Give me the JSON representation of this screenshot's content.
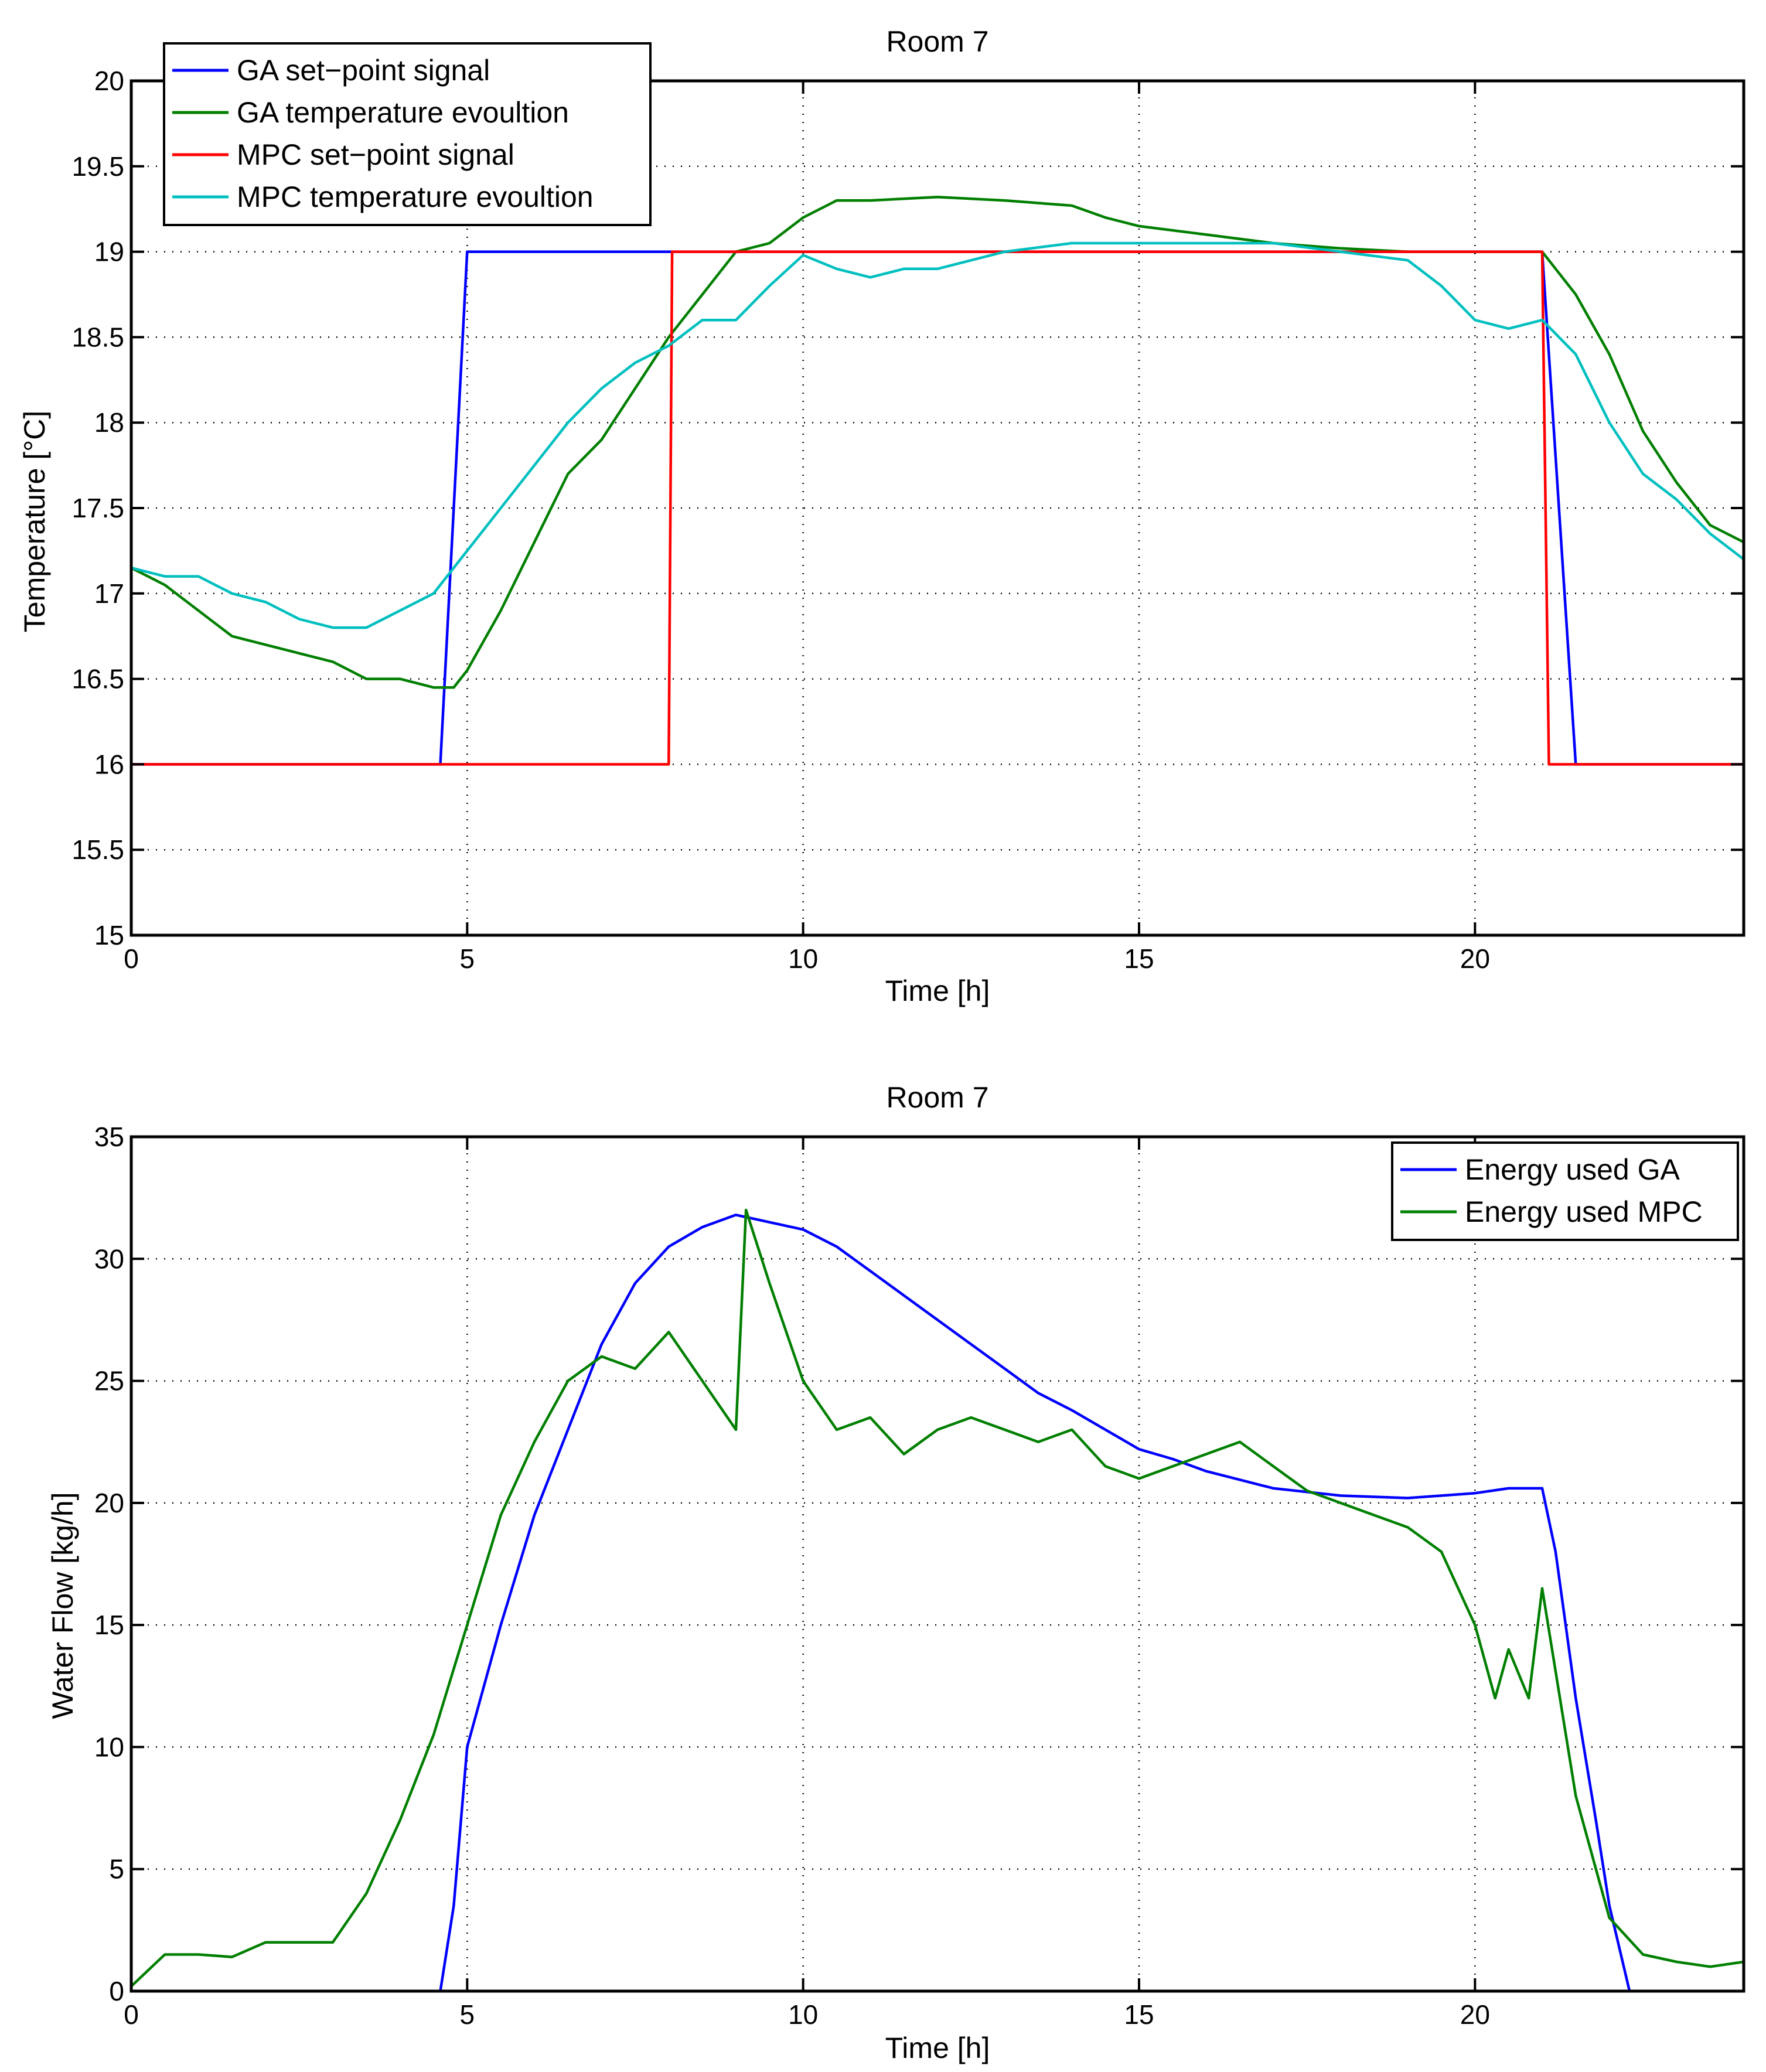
{
  "chart_data": [
    {
      "type": "line",
      "title": "Room 7",
      "xlabel": "Time [h]",
      "ylabel": "Temperature [°C]",
      "xlim": [
        0,
        24
      ],
      "ylim": [
        15,
        20
      ],
      "xticks": [
        0,
        5,
        10,
        15,
        20
      ],
      "yticks": [
        15,
        15.5,
        16,
        16.5,
        17,
        17.5,
        18,
        18.5,
        19,
        19.5,
        20
      ],
      "xtick_labels": [
        "0",
        "5",
        "10",
        "15",
        "20"
      ],
      "ytick_labels": [
        "15",
        "15.5",
        "16",
        "16.5",
        "17",
        "17.5",
        "18",
        "18.5",
        "19",
        "19.5",
        "20"
      ],
      "grid": true,
      "legend_position": "top-left",
      "series": [
        {
          "name": "GA set−point signal",
          "color": "#0000ff",
          "x": [
            0,
            4.6,
            5.0,
            21.0,
            21.5,
            24
          ],
          "y": [
            16,
            16,
            19,
            19,
            16,
            16
          ]
        },
        {
          "name": "GA temperature evoultion",
          "color": "#007f00",
          "x": [
            0,
            0.5,
            1.0,
            1.5,
            2.0,
            2.5,
            3.0,
            3.5,
            4.0,
            4.5,
            4.8,
            5.0,
            5.5,
            6.0,
            6.5,
            7.0,
            7.5,
            8.0,
            8.5,
            9.0,
            9.5,
            10.0,
            10.5,
            11.0,
            12.0,
            13.0,
            14.0,
            14.5,
            15.0,
            16.0,
            17.0,
            18.0,
            19.0,
            20.0,
            21.0,
            21.5,
            22.0,
            22.5,
            23.0,
            23.5,
            24.0
          ],
          "y": [
            17.15,
            17.05,
            16.9,
            16.75,
            16.7,
            16.65,
            16.6,
            16.5,
            16.5,
            16.45,
            16.45,
            16.55,
            16.9,
            17.3,
            17.7,
            17.9,
            18.2,
            18.5,
            18.75,
            19.0,
            19.05,
            19.2,
            19.3,
            19.3,
            19.32,
            19.3,
            19.27,
            19.2,
            19.15,
            19.1,
            19.05,
            19.02,
            19.0,
            19.0,
            19.0,
            18.75,
            18.4,
            17.95,
            17.65,
            17.4,
            17.3
          ]
        },
        {
          "name": "MPC set−point signal",
          "color": "#ff0000",
          "x": [
            0,
            8.0,
            8.05,
            21.0,
            21.1,
            24
          ],
          "y": [
            16,
            16,
            19,
            19,
            16,
            16
          ]
        },
        {
          "name": "MPC temperature evoultion",
          "color": "#00bfbf",
          "x": [
            0,
            0.5,
            1.0,
            1.5,
            2.0,
            2.5,
            3.0,
            3.5,
            4.0,
            4.5,
            5.0,
            5.5,
            6.0,
            6.5,
            7.0,
            7.5,
            8.0,
            8.5,
            9.0,
            9.5,
            10.0,
            10.5,
            11.0,
            11.5,
            12.0,
            13.0,
            14.0,
            15.0,
            16.0,
            17.0,
            18.0,
            19.0,
            19.5,
            20.0,
            20.5,
            21.0,
            21.5,
            22.0,
            22.5,
            23.0,
            23.5,
            24.0
          ],
          "y": [
            17.15,
            17.1,
            17.1,
            17.0,
            16.95,
            16.85,
            16.8,
            16.8,
            16.9,
            17.0,
            17.25,
            17.5,
            17.75,
            18.0,
            18.2,
            18.35,
            18.45,
            18.6,
            18.6,
            18.8,
            18.98,
            18.9,
            18.85,
            18.9,
            18.9,
            19.0,
            19.05,
            19.05,
            19.05,
            19.05,
            19.0,
            18.95,
            18.8,
            18.6,
            18.55,
            18.6,
            18.4,
            18.0,
            17.7,
            17.55,
            17.35,
            17.2
          ]
        }
      ]
    },
    {
      "type": "line",
      "title": "Room 7",
      "xlabel": "Time [h]",
      "ylabel": "Water Flow [kg/h]",
      "xlim": [
        0,
        24
      ],
      "ylim": [
        0,
        35
      ],
      "xticks": [
        0,
        5,
        10,
        15,
        20
      ],
      "yticks": [
        0,
        5,
        10,
        15,
        20,
        25,
        30,
        35
      ],
      "xtick_labels": [
        "0",
        "5",
        "10",
        "15",
        "20"
      ],
      "ytick_labels": [
        "0",
        "5",
        "10",
        "15",
        "20",
        "25",
        "30",
        "35"
      ],
      "grid": true,
      "legend_position": "top-right",
      "series": [
        {
          "name": "Energy used GA",
          "color": "#0000ff",
          "x": [
            0,
            4.6,
            4.8,
            5.0,
            5.5,
            6.0,
            6.5,
            7.0,
            7.5,
            8.0,
            8.5,
            9.0,
            9.5,
            10.0,
            10.5,
            11.0,
            11.5,
            12.0,
            12.5,
            13.0,
            13.5,
            14.0,
            14.5,
            15.0,
            15.5,
            16.0,
            17.0,
            18.0,
            19.0,
            20.0,
            20.5,
            21.0,
            21.2,
            21.5,
            21.8,
            22.0,
            22.3,
            24.0
          ],
          "y": [
            0,
            0,
            3.5,
            10,
            15,
            19.5,
            23,
            26.5,
            29,
            30.5,
            31.3,
            31.8,
            31.5,
            31.2,
            30.5,
            29.5,
            28.5,
            27.5,
            26.5,
            25.5,
            24.5,
            23.8,
            23,
            22.2,
            21.8,
            21.3,
            20.6,
            20.3,
            20.2,
            20.4,
            20.6,
            20.6,
            18,
            12,
            7,
            3.5,
            0,
            0
          ]
        },
        {
          "name": "Energy used MPC",
          "color": "#007f00",
          "x": [
            0,
            0.5,
            1.0,
            1.5,
            2.0,
            2.5,
            3.0,
            3.5,
            4.0,
            4.5,
            5.0,
            5.5,
            6.0,
            6.5,
            7.0,
            7.5,
            8.0,
            8.5,
            9.0,
            9.15,
            9.5,
            10.0,
            10.5,
            11.0,
            11.5,
            12.0,
            12.5,
            13.0,
            13.5,
            14.0,
            14.5,
            15.0,
            15.5,
            16.0,
            16.5,
            17.0,
            17.5,
            18.0,
            18.5,
            19.0,
            19.5,
            20.0,
            20.3,
            20.5,
            20.8,
            21.0,
            21.5,
            22.0,
            22.5,
            23.0,
            23.5,
            24.0
          ],
          "y": [
            0.2,
            1.5,
            1.5,
            1.4,
            2.0,
            2.0,
            2.0,
            4.0,
            7.0,
            10.5,
            15,
            19.5,
            22.5,
            25.0,
            26,
            25.5,
            27,
            25,
            23,
            32,
            29,
            25,
            23,
            23.5,
            22,
            23,
            23.5,
            23,
            22.5,
            23,
            21.5,
            21,
            21.5,
            22,
            22.5,
            21.5,
            20.5,
            20.0,
            19.5,
            19.0,
            18.0,
            15.0,
            12.0,
            14.0,
            12.0,
            16.5,
            8,
            3.0,
            1.5,
            1.2,
            1.0,
            1.2
          ]
        }
      ]
    }
  ]
}
